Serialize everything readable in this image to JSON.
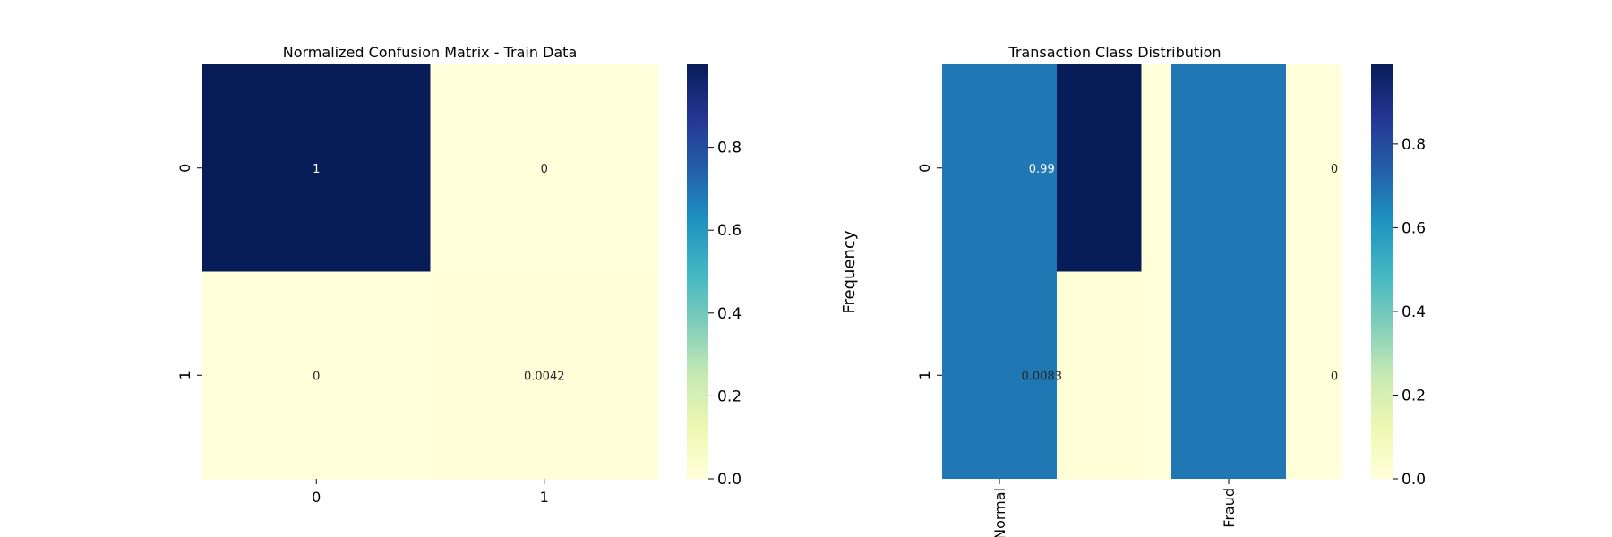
{
  "chart_data": [
    {
      "type": "heatmap",
      "title": "Normalized Confusion Matrix - Train Data",
      "xlabel": "",
      "ylabel": "",
      "x_ticks": [
        "0",
        "1"
      ],
      "y_ticks": [
        "0",
        "1"
      ],
      "values": [
        [
          1,
          0
        ],
        [
          0,
          0.0042
        ]
      ],
      "annotations": [
        [
          "1",
          "0"
        ],
        [
          "0",
          "0.0042"
        ]
      ],
      "colormap": "YlGnBu",
      "colorbar": {
        "range": [
          0,
          1
        ],
        "ticks": [
          "0.0",
          "0.2",
          "0.4",
          "0.6",
          "0.8"
        ]
      }
    },
    {
      "type": "heatmap",
      "overlay": "bar",
      "title": "Transaction Class Distribution",
      "xlabel": "",
      "ylabel": "Frequency",
      "x_ticks": [
        "Normal",
        "Fraud"
      ],
      "y_ticks": [
        "0",
        "1"
      ],
      "values": [
        [
          0.99,
          0
        ],
        [
          0.0083,
          0
        ]
      ],
      "annotations": [
        [
          "0.99",
          "0"
        ],
        [
          "0.0083",
          "0"
        ]
      ],
      "bar_color": "#1f77b4",
      "colormap": "YlGnBu",
      "colorbar": {
        "range": [
          0,
          0.99
        ],
        "ticks": [
          "0.0",
          "0.2",
          "0.4",
          "0.6",
          "0.8"
        ]
      }
    }
  ]
}
